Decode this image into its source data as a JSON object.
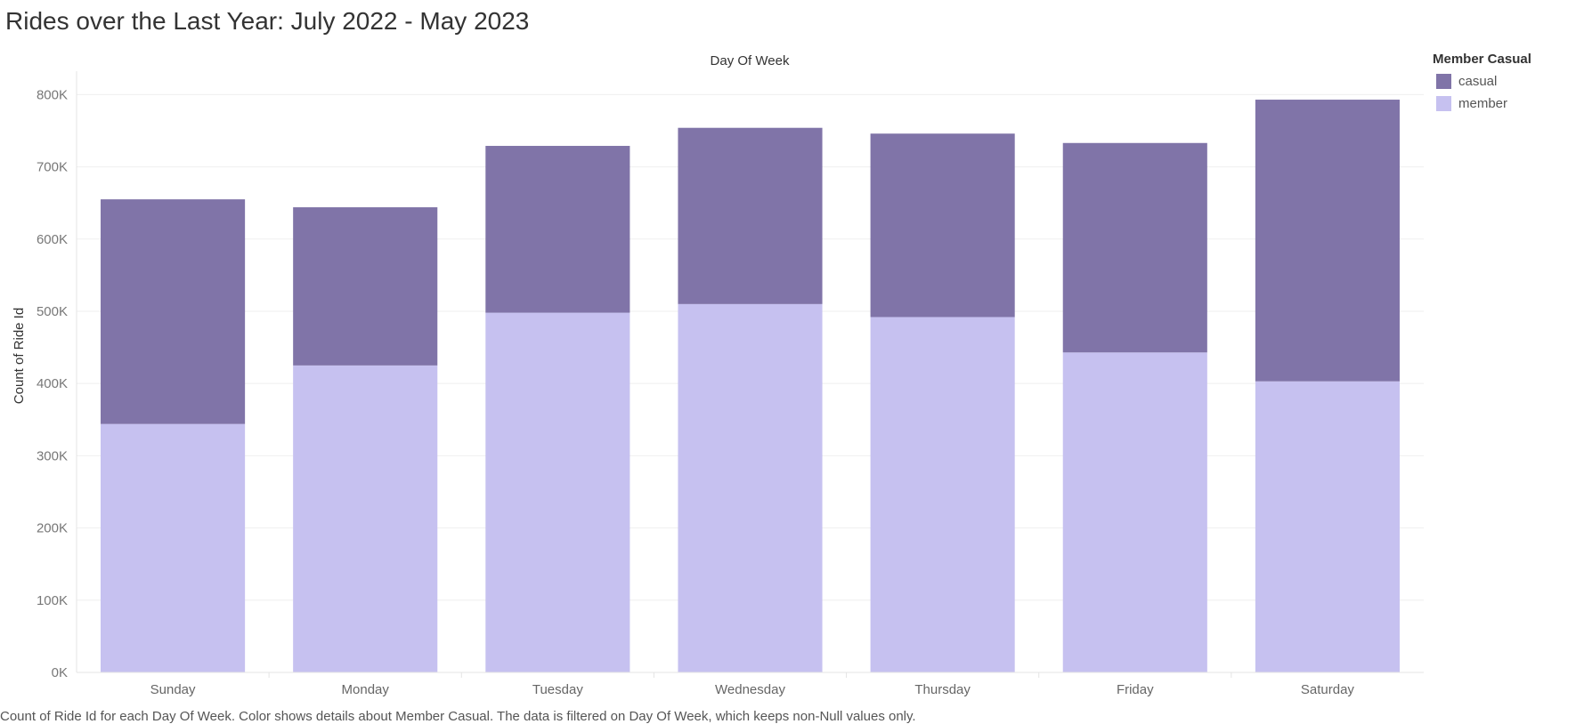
{
  "title": "Rides over the Last Year: July 2022 - May 2023",
  "caption": "Count of Ride Id for each Day Of Week.  Color shows details about Member Casual. The data is filtered on Day Of Week, which keeps non-Null values only.",
  "legend": {
    "title": "Member Casual",
    "placement": "top-right",
    "items": [
      {
        "label": "casual",
        "color": "#8074A8"
      },
      {
        "label": "member",
        "color": "#C6C1F0"
      }
    ]
  },
  "chart_data": {
    "type": "bar",
    "stacked": true,
    "column_header": "Day Of Week",
    "ylabel": "Count of Ride Id",
    "ylim": [
      0,
      830000
    ],
    "yticks": [
      0,
      100000,
      200000,
      300000,
      400000,
      500000,
      600000,
      700000,
      800000
    ],
    "ytick_labels": [
      "0K",
      "100K",
      "200K",
      "300K",
      "400K",
      "500K",
      "600K",
      "700K",
      "800K"
    ],
    "grid": true,
    "categories": [
      "Sunday",
      "Monday",
      "Tuesday",
      "Wednesday",
      "Thursday",
      "Friday",
      "Saturday"
    ],
    "series": [
      {
        "name": "member",
        "color": "#C6C1F0",
        "values": [
          344000,
          425000,
          498000,
          510000,
          492000,
          443000,
          403000
        ]
      },
      {
        "name": "casual",
        "color": "#8074A8",
        "values": [
          311000,
          219000,
          231000,
          244000,
          254000,
          290000,
          390000
        ]
      }
    ]
  }
}
